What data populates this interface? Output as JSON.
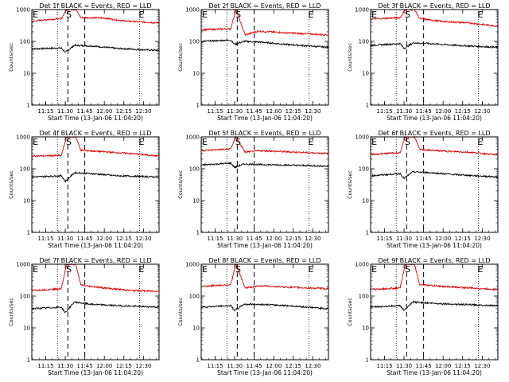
{
  "colors": {
    "events": "#000000",
    "lld": "#dd0000",
    "axes": "#000000",
    "background": "#ffffff"
  },
  "shared": {
    "x_label": "Start Time (13-Jan-06 11:04:20)",
    "y_label": "Counts/sec",
    "x_tick_labels": [
      "11:15",
      "11:30",
      "11:45",
      "12:00",
      "12:15",
      "12:30"
    ],
    "y_tick_labels": [
      "1",
      "10",
      "100",
      "1000"
    ],
    "marker_s": "S",
    "marker_e": "E"
  },
  "chart_data": [
    {
      "type": "line",
      "title": "Det 1f BLACK = Events, RED = LLD",
      "y_scale": "log",
      "ylim": [
        1,
        1000
      ],
      "x_range": [
        "11:04:20",
        "12:42"
      ],
      "marker_positions": {
        "E_start": "11:05",
        "S": "11:33",
        "E_end": "12:27"
      },
      "dotted_lines_at": [
        "11:24",
        "12:27"
      ],
      "dashed_lines_at": [
        "11:32",
        "11:45"
      ],
      "series": [
        {
          "name": "Events",
          "anchors": [
            [
              "11:04",
              58
            ],
            [
              "11:27",
              62
            ],
            [
              "11:30",
              45
            ],
            [
              "11:37",
              75
            ],
            [
              "11:50",
              72
            ],
            [
              "12:10",
              60
            ],
            [
              "12:42",
              52
            ]
          ]
        },
        {
          "name": "LLD",
          "anchors": [
            [
              "11:04",
              420
            ],
            [
              "11:15",
              480
            ],
            [
              "11:27",
              520
            ],
            [
              "11:31",
              1000
            ],
            [
              "11:38",
              1000
            ],
            [
              "11:42",
              560
            ],
            [
              "12:00",
              540
            ],
            [
              "12:15",
              440
            ],
            [
              "12:42",
              380
            ]
          ]
        }
      ]
    },
    {
      "type": "line",
      "title": "Det 2f BLACK = Events, RED = LLD",
      "y_scale": "log",
      "ylim": [
        1,
        1000
      ],
      "x_range": [
        "11:04:20",
        "12:42"
      ],
      "marker_positions": {
        "E_start": "11:05",
        "S": "11:33",
        "E_end": "12:27"
      },
      "dotted_lines_at": [
        "11:24",
        "12:27"
      ],
      "dashed_lines_at": [
        "11:32",
        "11:45"
      ],
      "series": [
        {
          "name": "Events",
          "anchors": [
            [
              "11:04",
              100
            ],
            [
              "11:27",
              110
            ],
            [
              "11:30",
              80
            ],
            [
              "11:37",
              100
            ],
            [
              "11:50",
              95
            ],
            [
              "12:10",
              80
            ],
            [
              "12:42",
              65
            ]
          ]
        },
        {
          "name": "LLD",
          "anchors": [
            [
              "11:04",
              230
            ],
            [
              "11:27",
              250
            ],
            [
              "11:31",
              1000
            ],
            [
              "11:38",
              160
            ],
            [
              "11:48",
              210
            ],
            [
              "12:05",
              190
            ],
            [
              "12:42",
              160
            ]
          ]
        }
      ]
    },
    {
      "type": "line",
      "title": "Det 3f BLACK = Events, RED = LLD",
      "y_scale": "log",
      "ylim": [
        1,
        1000
      ],
      "x_range": [
        "11:04:20",
        "12:42"
      ],
      "marker_positions": {
        "E_start": "11:05",
        "S": "11:33",
        "E_end": "12:27"
      },
      "dotted_lines_at": [
        "11:24",
        "12:27"
      ],
      "dashed_lines_at": [
        "11:32",
        "11:45"
      ],
      "series": [
        {
          "name": "Events",
          "anchors": [
            [
              "11:04",
              75
            ],
            [
              "11:27",
              85
            ],
            [
              "11:30",
              60
            ],
            [
              "11:37",
              90
            ],
            [
              "11:50",
              85
            ],
            [
              "12:10",
              75
            ],
            [
              "12:42",
              65
            ]
          ]
        },
        {
          "name": "LLD",
          "anchors": [
            [
              "11:04",
              500
            ],
            [
              "11:27",
              560
            ],
            [
              "11:31",
              1000
            ],
            [
              "11:38",
              1000
            ],
            [
              "11:42",
              520
            ],
            [
              "12:00",
              420
            ],
            [
              "12:20",
              380
            ],
            [
              "12:42",
              300
            ]
          ]
        }
      ]
    },
    {
      "type": "line",
      "title": "Det 4f BLACK = Events, RED = LLD",
      "y_scale": "log",
      "ylim": [
        1,
        1000
      ],
      "x_range": [
        "11:04:20",
        "12:42"
      ],
      "marker_positions": {
        "E_start": "11:05",
        "S": "11:33",
        "E_end": "12:27"
      },
      "dotted_lines_at": [
        "11:24",
        "12:27"
      ],
      "dashed_lines_at": [
        "11:32",
        "11:45"
      ],
      "series": [
        {
          "name": "Events",
          "anchors": [
            [
              "11:04",
              55
            ],
            [
              "11:27",
              60
            ],
            [
              "11:30",
              40
            ],
            [
              "11:37",
              75
            ],
            [
              "11:50",
              70
            ],
            [
              "12:10",
              60
            ],
            [
              "12:42",
              55
            ]
          ]
        },
        {
          "name": "LLD",
          "anchors": [
            [
              "11:04",
              250
            ],
            [
              "11:27",
              260
            ],
            [
              "11:31",
              1000
            ],
            [
              "11:38",
              1000
            ],
            [
              "11:42",
              380
            ],
            [
              "12:00",
              340
            ],
            [
              "12:20",
              300
            ],
            [
              "12:42",
              250
            ]
          ]
        }
      ]
    },
    {
      "type": "line",
      "title": "Det 5f BLACK = Events, RED = LLD",
      "y_scale": "log",
      "ylim": [
        1,
        1000
      ],
      "x_range": [
        "11:04:20",
        "12:42"
      ],
      "marker_positions": {
        "E_start": "11:05",
        "S": "11:33",
        "E_end": "12:27"
      },
      "dotted_lines_at": [
        "11:24",
        "12:27"
      ],
      "dashed_lines_at": [
        "11:32",
        "11:45"
      ],
      "series": [
        {
          "name": "Events",
          "anchors": [
            [
              "11:04",
              130
            ],
            [
              "11:27",
              150
            ],
            [
              "11:30",
              110
            ],
            [
              "11:37",
              140
            ],
            [
              "11:50",
              135
            ],
            [
              "12:10",
              130
            ],
            [
              "12:42",
              120
            ]
          ]
        },
        {
          "name": "LLD",
          "anchors": [
            [
              "11:04",
              370
            ],
            [
              "11:27",
              420
            ],
            [
              "11:31",
              1000
            ],
            [
              "11:38",
              330
            ],
            [
              "11:50",
              370
            ],
            [
              "12:10",
              340
            ],
            [
              "12:42",
              300
            ]
          ]
        }
      ]
    },
    {
      "type": "line",
      "title": "Det 6f BLACK = Events, RED = LLD",
      "y_scale": "log",
      "ylim": [
        1,
        1000
      ],
      "x_range": [
        "11:04:20",
        "12:42"
      ],
      "marker_positions": {
        "E_start": "11:05",
        "S": "11:33",
        "E_end": "12:27"
      },
      "dotted_lines_at": [
        "11:24",
        "12:27"
      ],
      "dashed_lines_at": [
        "11:32",
        "11:45"
      ],
      "series": [
        {
          "name": "Events",
          "anchors": [
            [
              "11:04",
              60
            ],
            [
              "11:27",
              70
            ],
            [
              "11:30",
              50
            ],
            [
              "11:37",
              80
            ],
            [
              "11:50",
              75
            ],
            [
              "12:10",
              65
            ],
            [
              "12:42",
              55
            ]
          ]
        },
        {
          "name": "LLD",
          "anchors": [
            [
              "11:04",
              280
            ],
            [
              "11:27",
              320
            ],
            [
              "11:31",
              1000
            ],
            [
              "11:38",
              1000
            ],
            [
              "11:42",
              400
            ],
            [
              "12:00",
              360
            ],
            [
              "12:20",
              330
            ],
            [
              "12:42",
              270
            ]
          ]
        }
      ]
    },
    {
      "type": "line",
      "title": "Det 7f BLACK = Events, RED = LLD",
      "y_scale": "log",
      "ylim": [
        1,
        1000
      ],
      "x_range": [
        "11:04:20",
        "12:42"
      ],
      "marker_positions": {
        "E_start": "11:05",
        "S": "11:33",
        "E_end": "12:27"
      },
      "dotted_lines_at": [
        "11:24",
        "12:27"
      ],
      "dashed_lines_at": [
        "11:32",
        "11:45"
      ],
      "series": [
        {
          "name": "Events",
          "anchors": [
            [
              "11:04",
              40
            ],
            [
              "11:27",
              45
            ],
            [
              "11:30",
              30
            ],
            [
              "11:37",
              65
            ],
            [
              "11:50",
              55
            ],
            [
              "12:10",
              50
            ],
            [
              "12:42",
              45
            ]
          ]
        },
        {
          "name": "LLD",
          "anchors": [
            [
              "11:04",
              150
            ],
            [
              "11:27",
              170
            ],
            [
              "11:31",
              1000
            ],
            [
              "11:38",
              1000
            ],
            [
              "11:42",
              220
            ],
            [
              "12:00",
              180
            ],
            [
              "12:20",
              150
            ],
            [
              "12:42",
              140
            ]
          ]
        }
      ]
    },
    {
      "type": "line",
      "title": "Det 8f BLACK = Events, RED = LLD",
      "y_scale": "log",
      "ylim": [
        1,
        1000
      ],
      "x_range": [
        "11:04:20",
        "12:42"
      ],
      "marker_positions": {
        "E_start": "11:05",
        "S": "11:33",
        "E_end": "12:27"
      },
      "dotted_lines_at": [
        "11:24",
        "12:27"
      ],
      "dashed_lines_at": [
        "11:32",
        "11:45"
      ],
      "series": [
        {
          "name": "Events",
          "anchors": [
            [
              "11:04",
              45
            ],
            [
              "11:27",
              50
            ],
            [
              "11:30",
              35
            ],
            [
              "11:37",
              55
            ],
            [
              "11:50",
              55
            ],
            [
              "12:10",
              50
            ],
            [
              "12:42",
              40
            ]
          ]
        },
        {
          "name": "LLD",
          "anchors": [
            [
              "11:04",
              200
            ],
            [
              "11:27",
              230
            ],
            [
              "11:31",
              1000
            ],
            [
              "11:38",
              180
            ],
            [
              "11:50",
              210
            ],
            [
              "12:10",
              190
            ],
            [
              "12:42",
              170
            ]
          ]
        }
      ]
    },
    {
      "type": "line",
      "title": "Det 9f BLACK = Events, RED = LLD",
      "y_scale": "log",
      "ylim": [
        1,
        1000
      ],
      "x_range": [
        "11:04:20",
        "12:42"
      ],
      "marker_positions": {
        "E_start": "11:05",
        "S": "11:33",
        "E_end": "12:27"
      },
      "dotted_lines_at": [
        "11:24",
        "12:27"
      ],
      "dashed_lines_at": [
        "11:32",
        "11:45"
      ],
      "series": [
        {
          "name": "Events",
          "anchors": [
            [
              "11:04",
              45
            ],
            [
              "11:27",
              50
            ],
            [
              "11:30",
              35
            ],
            [
              "11:37",
              65
            ],
            [
              "11:50",
              60
            ],
            [
              "12:10",
              55
            ],
            [
              "12:42",
              50
            ]
          ]
        },
        {
          "name": "LLD",
          "anchors": [
            [
              "11:04",
              160
            ],
            [
              "11:27",
              180
            ],
            [
              "11:31",
              1000
            ],
            [
              "11:38",
              1000
            ],
            [
              "11:42",
              230
            ],
            [
              "12:00",
              200
            ],
            [
              "12:20",
              180
            ],
            [
              "12:42",
              160
            ]
          ]
        }
      ]
    }
  ]
}
